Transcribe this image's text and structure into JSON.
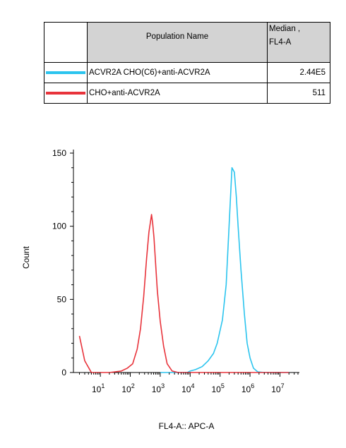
{
  "legend": {
    "header_population": "Population Name",
    "header_median_line1": "Median ,",
    "header_median_line2": "FL4-A",
    "rows": [
      {
        "name": "ACVR2A CHO(C6)+anti-ACVR2A",
        "median": "2.44E5",
        "color": "#2bc4ee"
      },
      {
        "name": "CHO+anti-ACVR2A",
        "median": "511",
        "color": "#e8333b"
      }
    ]
  },
  "chart_data": {
    "type": "line",
    "xlabel": "FL4-A:: APC-A",
    "ylabel": "Count",
    "x_scale": "log",
    "x_ticks": [
      {
        "exp": 1,
        "base": "10",
        "sup": "1"
      },
      {
        "exp": 2,
        "base": "10",
        "sup": "2"
      },
      {
        "exp": 3,
        "base": "10",
        "sup": "3"
      },
      {
        "exp": 4,
        "base": "10",
        "sup": "4"
      },
      {
        "exp": 5,
        "base": "10",
        "sup": "5"
      },
      {
        "exp": 6,
        "base": "10",
        "sup": "6"
      },
      {
        "exp": 7,
        "base": "10",
        "sup": "7"
      }
    ],
    "y_ticks": [
      0,
      50,
      100,
      150
    ],
    "ylim": [
      0,
      150
    ],
    "grid": false,
    "series": [
      {
        "name": "ACVR2A CHO(C6)+anti-ACVR2A",
        "color": "#2bc4ee",
        "x": [
          1000,
          3000,
          8000,
          10000,
          15000,
          25000,
          40000,
          60000,
          80000,
          120000,
          160000,
          200000,
          250000,
          300000,
          350000,
          400000,
          500000,
          650000,
          800000,
          1000000,
          1300000,
          1800000,
          3000000,
          10000000,
          20000000
        ],
        "y": [
          0,
          0,
          0,
          1,
          2,
          4,
          8,
          13,
          20,
          36,
          60,
          100,
          140,
          137,
          120,
          100,
          70,
          40,
          20,
          10,
          3,
          0.5,
          0,
          0,
          0
        ]
      },
      {
        "name": "CHO+anti-ACVR2A",
        "color": "#e8333b",
        "x": [
          2,
          3,
          5,
          10,
          20,
          50,
          80,
          120,
          170,
          220,
          280,
          350,
          420,
          480,
          511,
          560,
          620,
          700,
          800,
          1000,
          1300,
          1700,
          2500,
          4000,
          10000,
          50000,
          300000,
          2000000,
          20000000
        ],
        "y": [
          25,
          8,
          0,
          0,
          0,
          1,
          3,
          6,
          16,
          30,
          52,
          78,
          96,
          104,
          108,
          102,
          92,
          75,
          56,
          35,
          18,
          6,
          1,
          0,
          0,
          0,
          0,
          0,
          0
        ]
      }
    ]
  }
}
